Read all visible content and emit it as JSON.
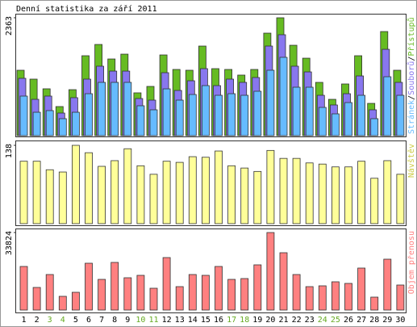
{
  "chart_data": [
    {
      "type": "bar",
      "title": "Denní statistika za září 2011",
      "legend_separator": "/",
      "ylim": [
        0,
        2363
      ],
      "yticks": [
        2363
      ],
      "series": [
        {
          "name": "Přístupů",
          "color": "#66bb22",
          "values": [
            1311,
            1133,
            939,
            583,
            922,
            1602,
            1828,
            1537,
            1634,
            858,
            987,
            1618,
            1327,
            1311,
            1796,
            1343,
            1327,
            1214,
            1327,
            2055,
            2363,
            1812,
            1553,
            1068,
            728,
            1036,
            1602,
            647,
            2087,
            1311
          ]
        },
        {
          "name": "Souborů",
          "color": "#8877ee",
          "values": [
            1149,
            728,
            793,
            453,
            761,
            1133,
            1392,
            1294,
            1294,
            744,
            712,
            1262,
            906,
            1100,
            1343,
            1003,
            1133,
            1068,
            1165,
            1796,
            2023,
            1392,
            1278,
            809,
            615,
            841,
            1197,
            518,
            1731,
            1068
          ]
        },
        {
          "name": "Stránek",
          "color": "#66bbff",
          "values": [
            793,
            469,
            502,
            340,
            469,
            841,
            1068,
            1068,
            1068,
            599,
            518,
            938,
            712,
            825,
            1003,
            809,
            841,
            809,
            890,
            1311,
            1570,
            971,
            971,
            566,
            437,
            663,
            809,
            340,
            1181,
            809
          ]
        }
      ]
    },
    {
      "type": "bar",
      "ylim": [
        0,
        138
      ],
      "yticks": [
        138
      ],
      "series": [
        {
          "name": "Návštěv",
          "color": "#ffff99",
          "values": [
            110,
            110,
            95,
            91,
            138,
            125,
            101,
            111,
            132,
            102,
            87,
            110,
            108,
            118,
            117,
            128,
            102,
            98,
            92,
            129,
            115,
            115,
            107,
            105,
            100,
            100,
            110,
            80,
            111,
            87
          ]
        }
      ]
    },
    {
      "type": "bar",
      "ylim": [
        0,
        33824
      ],
      "yticks": [
        33824
      ],
      "categories": [
        "1",
        "2",
        "3",
        "4",
        "5",
        "6",
        "7",
        "8",
        "9",
        "10",
        "11",
        "12",
        "13",
        "14",
        "15",
        "16",
        "17",
        "18",
        "19",
        "20",
        "21",
        "22",
        "23",
        "24",
        "25",
        "26",
        "27",
        "28",
        "29",
        "30"
      ],
      "category_colors": [
        "#000",
        "#000",
        "#66aa22",
        "#66aa22",
        "#000",
        "#000",
        "#000",
        "#000",
        "#000",
        "#66aa22",
        "#66aa22",
        "#000",
        "#000",
        "#000",
        "#000",
        "#000",
        "#66aa22",
        "#66aa22",
        "#000",
        "#000",
        "#000",
        "#000",
        "#000",
        "#66aa22",
        "#66aa22",
        "#000",
        "#000",
        "#000",
        "#000",
        "#000"
      ],
      "series": [
        {
          "name": "Objem přenosu",
          "color": "#ff8080",
          "values": [
            19024,
            9864,
            15501,
            5989,
            7751,
            20433,
            13387,
            20786,
            14092,
            15149,
            9512,
            22900,
            10217,
            15501,
            15149,
            19024,
            13387,
            13740,
            19729,
            33824,
            25013,
            15501,
            10217,
            10569,
            12331,
            11626,
            18320,
            5637,
            22195,
            10921
          ]
        }
      ]
    }
  ]
}
